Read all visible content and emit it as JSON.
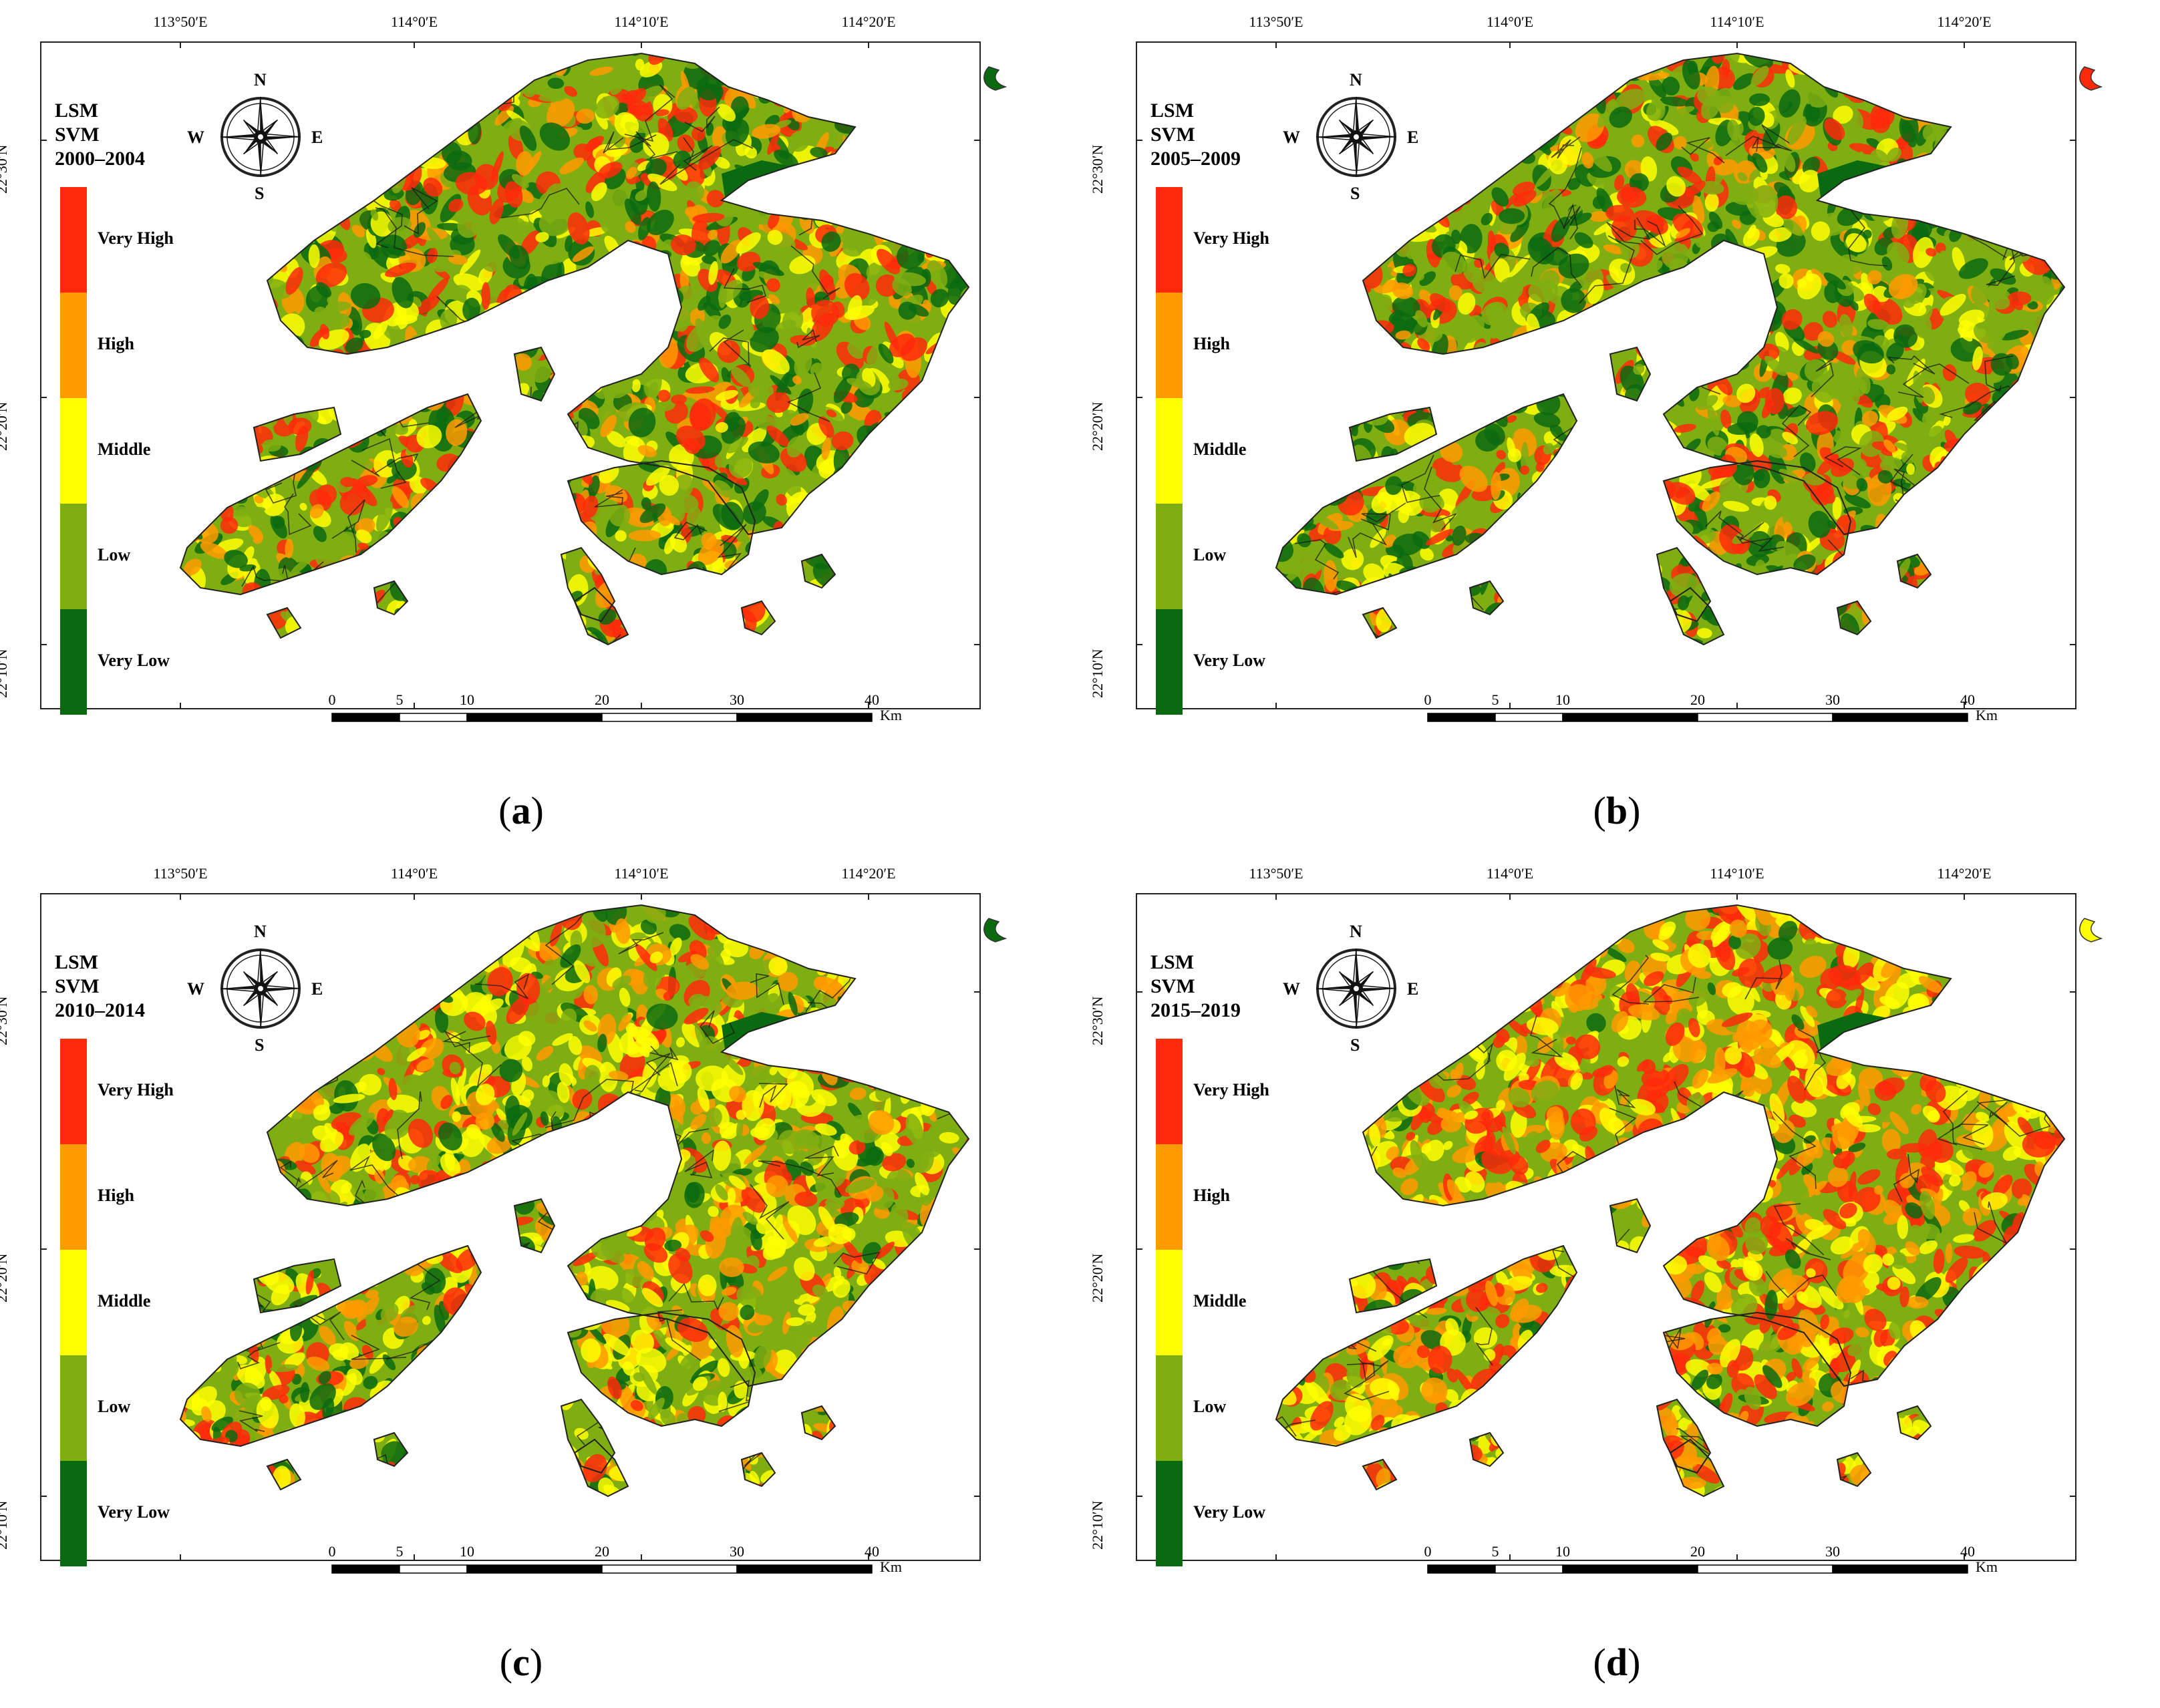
{
  "legend": {
    "title_lines": [
      "LSM",
      "SVM"
    ],
    "classes": [
      {
        "label": "Very High",
        "color": "#ff2a0a"
      },
      {
        "label": "High",
        "color": "#ff9a00"
      },
      {
        "label": "Middle",
        "color": "#ffff00"
      },
      {
        "label": "Low",
        "color": "#7fae12"
      },
      {
        "label": "Very Low",
        "color": "#0a6a10"
      }
    ]
  },
  "longitude_labels": [
    "113°50′E",
    "114°0′E",
    "114°10′E",
    "114°20′E"
  ],
  "latitude_labels": [
    "22°30′N",
    "22°20′N",
    "22°10′N"
  ],
  "compass": {
    "n": "N",
    "s": "S",
    "e": "E",
    "w": "W"
  },
  "scale_bar": {
    "ticks": [
      "0",
      "5",
      "10",
      "20",
      "30",
      "40"
    ],
    "unit": "Km"
  },
  "panels": [
    {
      "id": "a",
      "period": "2000–2004",
      "caption_letter": "a",
      "mix": [
        0.22,
        0.12,
        0.18,
        0.28,
        0.2
      ],
      "islet_color": "#0a6a10"
    },
    {
      "id": "b",
      "period": "2005–2009",
      "caption_letter": "b",
      "mix": [
        0.18,
        0.1,
        0.17,
        0.3,
        0.25
      ],
      "islet_color": "#ff2a0a"
    },
    {
      "id": "c",
      "period": "2010–2014",
      "caption_letter": "c",
      "mix": [
        0.16,
        0.18,
        0.3,
        0.22,
        0.14
      ],
      "islet_color": "#0a6a10"
    },
    {
      "id": "d",
      "period": "2015–2019",
      "caption_letter": "d",
      "mix": [
        0.26,
        0.3,
        0.28,
        0.1,
        0.06
      ],
      "islet_color": "#ffff00"
    }
  ]
}
